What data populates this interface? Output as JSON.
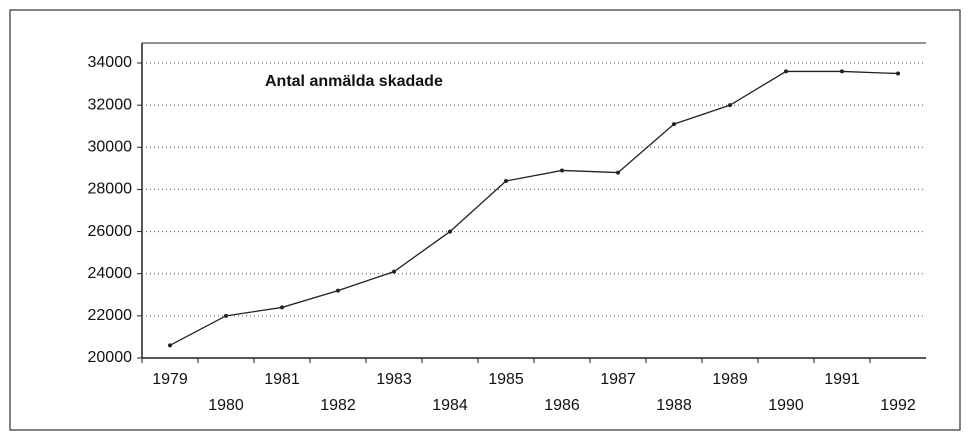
{
  "chart_data": {
    "type": "line",
    "title": "Antal anmälda skadade",
    "categories": [
      "1979",
      "1980",
      "1981",
      "1982",
      "1983",
      "1984",
      "1985",
      "1986",
      "1987",
      "1988",
      "1989",
      "1990",
      "1991",
      "1992"
    ],
    "series": [
      {
        "name": "Antal anmälda skadade",
        "color": "#222222",
        "values": [
          20600,
          22000,
          22400,
          23200,
          24100,
          26000,
          28400,
          28900,
          28800,
          31100,
          32000,
          33600,
          33600,
          33500
        ]
      }
    ],
    "ylim": [
      20000,
      34000
    ],
    "yticks": [
      20000,
      22000,
      24000,
      26000,
      28000,
      30000,
      32000,
      34000
    ],
    "grid": true
  }
}
